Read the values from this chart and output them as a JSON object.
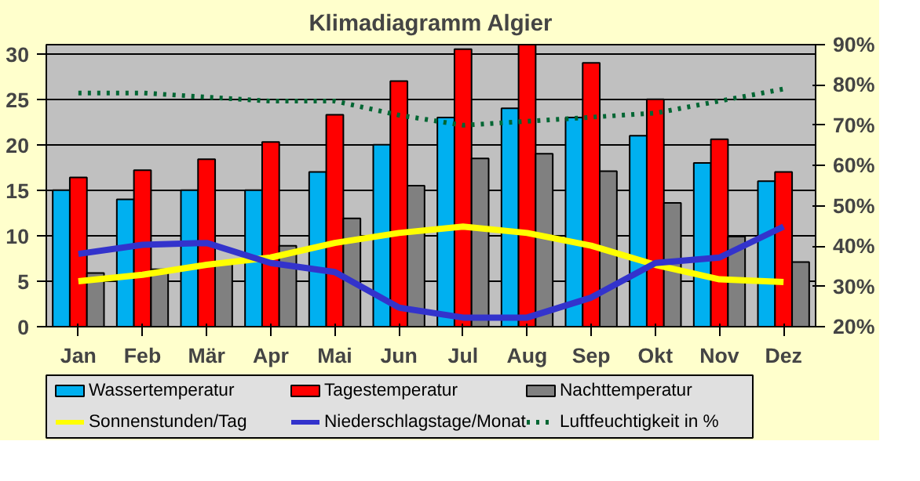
{
  "chart_data": {
    "type": "bar",
    "title": "Klimadiagramm Algier",
    "categories": [
      "Jan",
      "Feb",
      "Mär",
      "Apr",
      "Mai",
      "Jun",
      "Jul",
      "Aug",
      "Sep",
      "Okt",
      "Nov",
      "Dez"
    ],
    "series": [
      {
        "name": "Wassertemperatur",
        "color": "#00b0f0",
        "values": [
          15,
          14,
          15,
          15,
          17,
          20,
          23,
          24,
          23,
          21,
          18,
          16
        ]
      },
      {
        "name": "Tagestemperatur",
        "color": "#ff0000",
        "values": [
          16.4,
          17.2,
          18.4,
          20.3,
          23.3,
          27,
          30.5,
          31,
          29,
          25,
          20.6,
          17
        ]
      },
      {
        "name": "Nachttemperatur",
        "color": "#808080",
        "values": [
          5.9,
          6.3,
          7,
          8.9,
          11.9,
          15.5,
          18.5,
          19,
          17.1,
          13.6,
          9.9,
          7.1
        ]
      },
      {
        "name": "Sonnenstunden/Tag",
        "type": "line",
        "color": "#ffff00",
        "line_style": "solid",
        "values": [
          5,
          5.7,
          6.8,
          7.6,
          9.2,
          10.3,
          11,
          10.3,
          8.9,
          6.8,
          5.2,
          4.9
        ]
      },
      {
        "name": "Niederschlagstage/Monat",
        "type": "line",
        "color": "#3333cc",
        "line_style": "solid",
        "values": [
          8,
          9,
          9.2,
          7,
          6,
          2.1,
          1,
          1,
          3.2,
          7,
          7.6,
          11
        ]
      },
      {
        "name": "Luftfeuchtigkeit in %",
        "type": "line",
        "axis": "y2",
        "color": "#006633",
        "line_style": "dotted",
        "values": [
          78,
          78,
          77,
          76,
          76,
          72.5,
          70,
          71,
          72,
          73,
          76,
          79
        ]
      }
    ],
    "ylim": [
      0,
      31
    ],
    "yticks": [
      0,
      5,
      10,
      15,
      20,
      25,
      30
    ],
    "y2lim": [
      20,
      90
    ],
    "y2ticks": [
      {
        "value": 20,
        "label": "20%"
      },
      {
        "value": 30,
        "label": "30%"
      },
      {
        "value": 40,
        "label": "40%"
      },
      {
        "value": 50,
        "label": "50%"
      },
      {
        "value": 60,
        "label": "60%"
      },
      {
        "value": 70,
        "label": "70%"
      },
      {
        "value": 80,
        "label": "80%"
      },
      {
        "value": 90,
        "label": "90%"
      }
    ],
    "grid": "y",
    "legend": "bottom"
  }
}
